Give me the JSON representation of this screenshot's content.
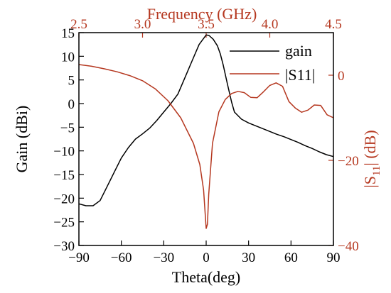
{
  "colors": {
    "gain": "#000000",
    "s11": "#b5371f",
    "frame": "#000000"
  },
  "chart_data": {
    "type": "line",
    "xlabel": "Theta(deg)",
    "ylabel": "Gain (dBi)",
    "x2label": "Frequency (GHz)",
    "y2label_pre": "|S",
    "y2label_sub": "11",
    "y2label_post": "| (dB)",
    "xlim": [
      -90,
      90
    ],
    "ylim": [
      -30,
      15
    ],
    "x2lim": [
      2.5,
      4.5
    ],
    "y2lim": [
      -40,
      10
    ],
    "xticks": [
      -90,
      -60,
      -30,
      0,
      30,
      60,
      90
    ],
    "xtick_labels": [
      "−90",
      "−60",
      "−30",
      "0",
      "30",
      "60",
      "90"
    ],
    "yticks": [
      -30,
      -25,
      -20,
      -15,
      -10,
      -5,
      0,
      5,
      10,
      15
    ],
    "ytick_labels": [
      "−30",
      "−25",
      "−20",
      "−15",
      "−10",
      "−5",
      "0",
      "5",
      "10",
      "15"
    ],
    "x2ticks": [
      2.5,
      3.0,
      3.5,
      4.0,
      4.5
    ],
    "x2tick_labels": [
      "2.5",
      "3.0",
      "3.5",
      "4.0",
      "4.5"
    ],
    "y2ticks": [
      -40,
      -20,
      0
    ],
    "y2tick_labels": [
      "−40",
      "−20",
      "0"
    ],
    "legend_position": "top-right",
    "series": [
      {
        "name": "gain",
        "axis": "primary",
        "x": [
          -90,
          -85,
          -80,
          -75,
          -70,
          -65,
          -60,
          -55,
          -50,
          -45,
          -40,
          -35,
          -30,
          -25,
          -20,
          -15,
          -10,
          -5,
          0,
          2,
          5,
          8,
          10,
          12,
          15,
          18,
          20,
          25,
          30,
          35,
          40,
          45,
          50,
          55,
          60,
          65,
          70,
          75,
          80,
          85,
          90
        ],
        "y": [
          -21.2,
          -21.6,
          -21.6,
          -20.5,
          -17.5,
          -14.5,
          -11.5,
          -9.3,
          -7.5,
          -6.4,
          -5.2,
          -3.6,
          -1.8,
          0,
          2,
          5.5,
          9,
          12.5,
          14.5,
          14.4,
          13.6,
          12.2,
          10.5,
          8.2,
          4.2,
          0.3,
          -1.8,
          -3.3,
          -4.1,
          -4.7,
          -5.3,
          -5.9,
          -6.5,
          -7.0,
          -7.6,
          -8.2,
          -8.9,
          -9.5,
          -10.2,
          -10.8,
          -11.2
        ]
      },
      {
        "name": "|S11|",
        "axis": "secondary",
        "x": [
          2.5,
          2.6,
          2.7,
          2.8,
          2.9,
          3.0,
          3.1,
          3.2,
          3.3,
          3.4,
          3.45,
          3.48,
          3.5,
          3.51,
          3.52,
          3.55,
          3.6,
          3.65,
          3.7,
          3.75,
          3.8,
          3.85,
          3.9,
          3.95,
          4.0,
          4.05,
          4.1,
          4.15,
          4.2,
          4.25,
          4.3,
          4.35,
          4.4,
          4.45,
          4.5
        ],
        "y": [
          2.5,
          2.1,
          1.5,
          0.8,
          -0.1,
          -1.3,
          -3.2,
          -6,
          -10,
          -16,
          -21,
          -27,
          -36,
          -35,
          -28,
          -16,
          -8.6,
          -5.7,
          -4.3,
          -3.8,
          -4.1,
          -5.2,
          -5.3,
          -3.9,
          -2.4,
          -1.8,
          -2.6,
          -6.2,
          -7.7,
          -8.7,
          -8.2,
          -7.0,
          -7.1,
          -9.3,
          -10.0
        ]
      }
    ]
  }
}
